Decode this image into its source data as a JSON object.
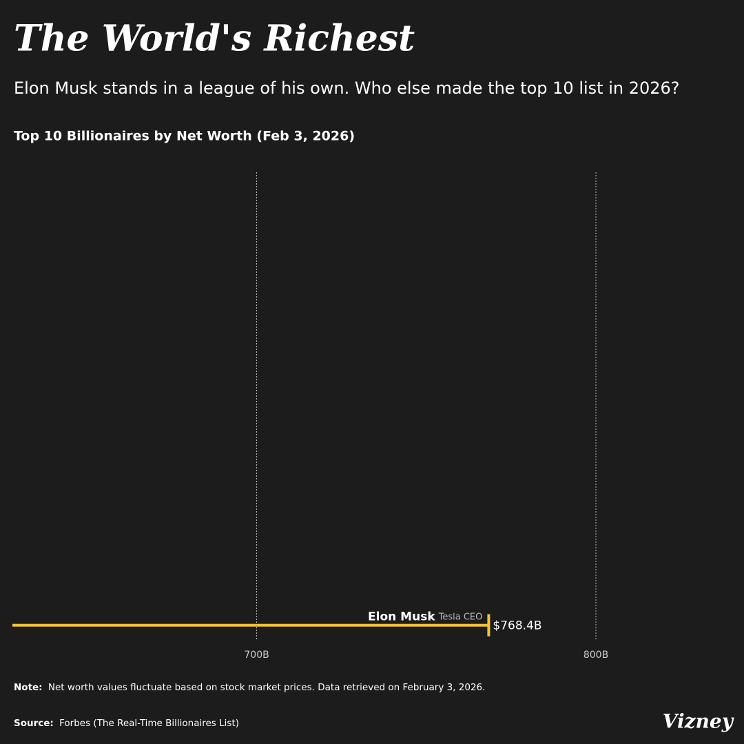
{
  "chart_data": {
    "type": "bar",
    "orientation": "horizontal",
    "title": "The World's Richest",
    "subtitle": "Elon Musk stands in a league of his own. Who else made the top 10 list in 2026?",
    "chart_title": "Top 10 Billionaires by Net Worth (Feb 3, 2026)",
    "categories": [
      "Elon Musk"
    ],
    "roles": [
      "Tesla CEO"
    ],
    "values": [
      768.4
    ],
    "value_labels": [
      "$768.4B"
    ],
    "color": "#f5c534",
    "xlim": [
      628,
      840
    ],
    "xticks": [
      {
        "value": 700,
        "label": "700B"
      },
      {
        "value": 800,
        "label": "800B"
      }
    ],
    "grid": true,
    "note_label": "Note:",
    "note": "Net worth values fluctuate based on stock market prices. Data retrieved on February 3, 2026.",
    "source_label": "Source:",
    "source": "Forbes (The Real-Time Billionaires List)",
    "brand": "Vizney"
  }
}
